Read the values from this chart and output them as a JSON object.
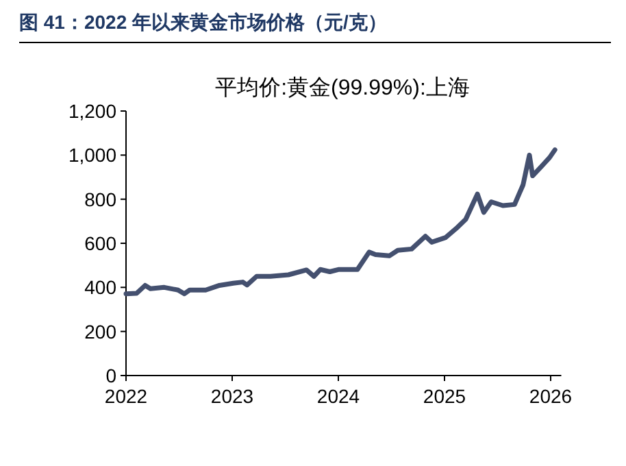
{
  "chart_data": {
    "type": "line",
    "title": "图 41：2022 年以来黄金市场价格（元/克）",
    "subtitle": "平均价:黄金(99.99%):上海",
    "series": [
      {
        "color": "#44506f",
        "x": [
          2022.0,
          2022.1,
          2022.18,
          2022.23,
          2022.36,
          2022.49,
          2022.55,
          2022.6,
          2022.75,
          2022.88,
          2023.01,
          2023.1,
          2023.14,
          2023.23,
          2023.36,
          2023.53,
          2023.7,
          2023.77,
          2023.83,
          2023.92,
          2024.0,
          2024.18,
          2024.29,
          2024.35,
          2024.48,
          2024.56,
          2024.69,
          2024.82,
          2024.88,
          2025.01,
          2025.11,
          2025.2,
          2025.31,
          2025.37,
          2025.44,
          2025.55,
          2025.66,
          2025.74,
          2025.8,
          2025.83,
          2025.91,
          2025.99,
          2026.04
        ],
        "values": [
          371,
          373,
          409,
          394,
          400,
          388,
          371,
          388,
          388,
          409,
          419,
          424,
          411,
          450,
          450,
          457,
          479,
          450,
          481,
          471,
          481,
          481,
          560,
          549,
          543,
          568,
          574,
          632,
          605,
          626,
          667,
          709,
          823,
          740,
          788,
          771,
          776,
          865,
          1000,
          906,
          947,
          989,
          1024
        ]
      }
    ],
    "xlim": [
      2022,
      2026.1
    ],
    "xticks": [
      2022,
      2023,
      2024,
      2025,
      2026
    ],
    "ylim": [
      0,
      1200
    ],
    "yticks": [
      0,
      200,
      400,
      600,
      800,
      {
        "value": 1000,
        "label": "1,000"
      },
      {
        "value": 1200,
        "label": "1,200"
      }
    ],
    "grid": false,
    "line_style": "solid",
    "marker": "none"
  }
}
